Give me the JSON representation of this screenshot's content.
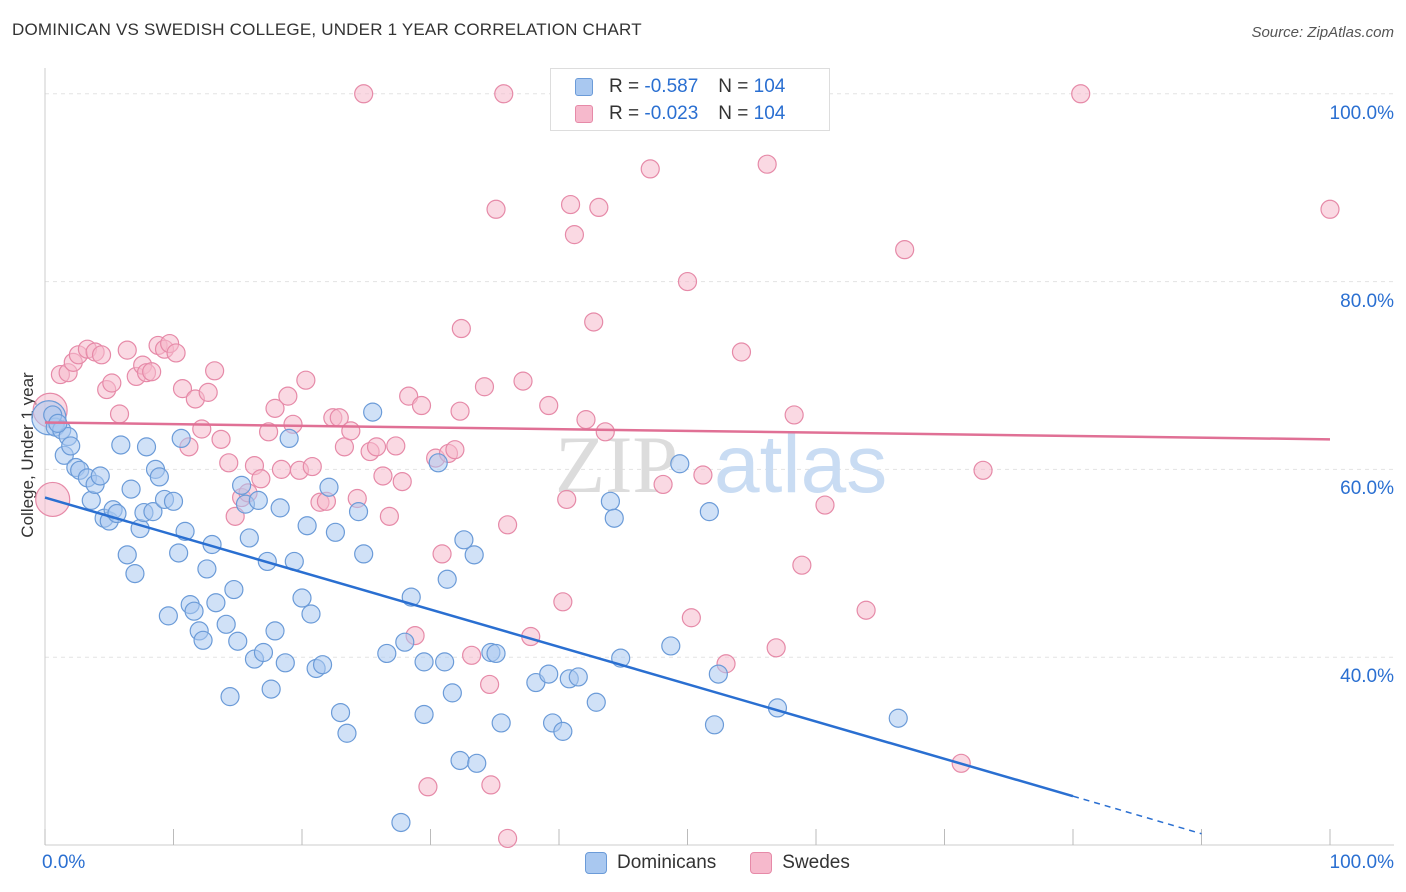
{
  "title": "DOMINICAN VS SWEDISH COLLEGE, UNDER 1 YEAR CORRELATION CHART",
  "source": "Source: ZipAtlas.com",
  "watermark": {
    "zip": "ZIP",
    "atlas": "atlas"
  },
  "colors": {
    "blue_fill": "#a9c8f0",
    "blue_stroke": "#6b9bd8",
    "blue_line": "#2a6fd1",
    "pink_fill": "#f6b9cc",
    "pink_stroke": "#e68aa8",
    "pink_line": "#e07095",
    "axis_text": "#2a6fd1",
    "grid": "#e3e3e3"
  },
  "legend": {
    "rows": [
      {
        "r_label": "R =",
        "r_value": "-0.587",
        "n_label": "N =",
        "n_value": "104"
      },
      {
        "r_label": "R =",
        "r_value": "-0.023",
        "n_label": "N =",
        "n_value": "104"
      }
    ]
  },
  "chart_data": {
    "type": "scatter",
    "title": "DOMINICAN VS SWEDISH COLLEGE, UNDER 1 YEAR CORRELATION CHART",
    "xlabel": "",
    "ylabel": "College, Under 1 year",
    "xlim": [
      0,
      100
    ],
    "ylim": [
      20,
      102
    ],
    "x_tick_labels": [
      "0.0%",
      "100.0%"
    ],
    "y_tick_labels": [
      "40.0%",
      "60.0%",
      "80.0%",
      "100.0%"
    ],
    "y_ticks": [
      40,
      60,
      80,
      100
    ],
    "grid": true,
    "legend_position": "top-center",
    "series": [
      {
        "name": "Dominicans",
        "color": "#a9c8f0",
        "trend": {
          "x0": 0,
          "y0": 57.0,
          "x1": 80,
          "y1": 25.2,
          "dashed_to_x": 90,
          "dashed_to_y": 21.2
        },
        "points": [
          [
            0.3,
            65.5
          ],
          [
            0.8,
            64.5
          ],
          [
            1.3,
            64.2
          ],
          [
            1.5,
            61.5
          ],
          [
            1.8,
            63.5
          ],
          [
            2.0,
            62.5
          ],
          [
            2.4,
            60.2
          ],
          [
            2.7,
            59.9
          ],
          [
            3.3,
            59.1
          ],
          [
            3.6,
            56.7
          ],
          [
            3.9,
            58.4
          ],
          [
            4.3,
            59.3
          ],
          [
            4.6,
            54.8
          ],
          [
            5.0,
            54.5
          ],
          [
            5.3,
            55.7
          ],
          [
            5.6,
            55.3
          ],
          [
            5.9,
            62.6
          ],
          [
            6.4,
            50.9
          ],
          [
            6.7,
            57.9
          ],
          [
            7.0,
            48.9
          ],
          [
            7.4,
            53.7
          ],
          [
            7.7,
            55.4
          ],
          [
            7.9,
            62.4
          ],
          [
            8.4,
            55.5
          ],
          [
            8.6,
            60.0
          ],
          [
            8.9,
            59.2
          ],
          [
            9.3,
            56.8
          ],
          [
            9.6,
            44.4
          ],
          [
            10.0,
            56.6
          ],
          [
            10.4,
            51.1
          ],
          [
            10.6,
            63.3
          ],
          [
            10.9,
            53.4
          ],
          [
            11.3,
            45.6
          ],
          [
            11.6,
            44.9
          ],
          [
            12.0,
            42.8
          ],
          [
            12.3,
            41.8
          ],
          [
            12.6,
            49.4
          ],
          [
            13.0,
            52.0
          ],
          [
            13.3,
            45.8
          ],
          [
            14.1,
            43.5
          ],
          [
            14.4,
            35.8
          ],
          [
            14.7,
            47.2
          ],
          [
            15.0,
            41.7
          ],
          [
            15.3,
            58.3
          ],
          [
            15.6,
            56.3
          ],
          [
            15.9,
            52.7
          ],
          [
            16.3,
            39.8
          ],
          [
            16.6,
            56.7
          ],
          [
            17.0,
            40.5
          ],
          [
            17.3,
            50.2
          ],
          [
            17.6,
            36.6
          ],
          [
            17.9,
            42.8
          ],
          [
            18.3,
            55.9
          ],
          [
            18.7,
            39.4
          ],
          [
            19.0,
            63.3
          ],
          [
            19.4,
            50.2
          ],
          [
            20.0,
            46.3
          ],
          [
            20.4,
            54.0
          ],
          [
            20.7,
            44.6
          ],
          [
            21.1,
            38.8
          ],
          [
            21.6,
            39.2
          ],
          [
            22.1,
            58.1
          ],
          [
            22.6,
            53.3
          ],
          [
            23.0,
            34.1
          ],
          [
            23.5,
            31.9
          ],
          [
            24.4,
            55.5
          ],
          [
            24.8,
            51.0
          ],
          [
            25.5,
            66.1
          ],
          [
            26.6,
            40.4
          ],
          [
            27.7,
            22.4
          ],
          [
            28.0,
            41.6
          ],
          [
            28.5,
            46.4
          ],
          [
            29.5,
            39.5
          ],
          [
            29.5,
            33.9
          ],
          [
            30.6,
            60.7
          ],
          [
            31.1,
            39.5
          ],
          [
            31.3,
            48.3
          ],
          [
            31.7,
            36.2
          ],
          [
            32.3,
            29.0
          ],
          [
            32.6,
            52.5
          ],
          [
            33.4,
            50.9
          ],
          [
            33.6,
            28.7
          ],
          [
            34.7,
            40.5
          ],
          [
            35.1,
            40.4
          ],
          [
            35.5,
            33.0
          ],
          [
            38.2,
            37.3
          ],
          [
            39.2,
            38.2
          ],
          [
            39.5,
            33.0
          ],
          [
            40.3,
            32.1
          ],
          [
            40.8,
            37.7
          ],
          [
            41.5,
            37.9
          ],
          [
            42.9,
            35.2
          ],
          [
            44.0,
            56.6
          ],
          [
            44.3,
            54.8
          ],
          [
            44.8,
            39.9
          ],
          [
            48.7,
            41.2
          ],
          [
            49.4,
            60.6
          ],
          [
            51.7,
            55.5
          ],
          [
            52.1,
            32.8
          ],
          [
            52.4,
            38.2
          ],
          [
            57.0,
            34.6
          ],
          [
            66.4,
            33.5
          ],
          [
            0.6,
            65.8
          ],
          [
            1.0,
            64.9
          ]
        ]
      },
      {
        "name": "Swedes",
        "color": "#f6b9cc",
        "trend": {
          "x0": 0,
          "y0": 65.0,
          "x1": 100,
          "y1": 63.2
        },
        "points": [
          [
            0.4,
            66.3
          ],
          [
            0.6,
            56.8
          ],
          [
            1.2,
            70.1
          ],
          [
            1.8,
            70.3
          ],
          [
            2.2,
            71.4
          ],
          [
            2.6,
            72.2
          ],
          [
            3.3,
            72.8
          ],
          [
            3.9,
            72.5
          ],
          [
            4.4,
            72.2
          ],
          [
            4.8,
            68.5
          ],
          [
            5.2,
            69.2
          ],
          [
            5.8,
            65.9
          ],
          [
            6.4,
            72.7
          ],
          [
            7.1,
            69.9
          ],
          [
            7.6,
            71.1
          ],
          [
            7.9,
            70.3
          ],
          [
            8.3,
            70.4
          ],
          [
            8.8,
            73.2
          ],
          [
            9.3,
            72.8
          ],
          [
            9.7,
            73.4
          ],
          [
            10.2,
            72.4
          ],
          [
            10.7,
            68.6
          ],
          [
            11.2,
            62.4
          ],
          [
            11.7,
            67.5
          ],
          [
            12.2,
            64.3
          ],
          [
            12.7,
            68.2
          ],
          [
            13.2,
            70.5
          ],
          [
            13.7,
            63.2
          ],
          [
            14.3,
            60.7
          ],
          [
            14.8,
            55.0
          ],
          [
            15.3,
            57.0
          ],
          [
            15.8,
            57.5
          ],
          [
            16.3,
            60.4
          ],
          [
            16.8,
            59.0
          ],
          [
            17.4,
            64.0
          ],
          [
            17.9,
            66.5
          ],
          [
            18.4,
            60.0
          ],
          [
            18.9,
            67.8
          ],
          [
            19.3,
            64.8
          ],
          [
            19.8,
            59.9
          ],
          [
            20.3,
            69.5
          ],
          [
            20.8,
            60.3
          ],
          [
            21.4,
            56.5
          ],
          [
            21.9,
            56.6
          ],
          [
            22.4,
            65.5
          ],
          [
            22.9,
            65.5
          ],
          [
            23.3,
            62.4
          ],
          [
            23.8,
            64.1
          ],
          [
            24.3,
            56.9
          ],
          [
            24.8,
            100.0
          ],
          [
            25.3,
            61.9
          ],
          [
            25.8,
            62.4
          ],
          [
            26.3,
            59.3
          ],
          [
            26.8,
            55.0
          ],
          [
            27.3,
            62.5
          ],
          [
            27.8,
            58.7
          ],
          [
            28.3,
            67.8
          ],
          [
            28.8,
            42.3
          ],
          [
            29.3,
            66.8
          ],
          [
            29.8,
            26.2
          ],
          [
            30.4,
            61.2
          ],
          [
            30.9,
            51.0
          ],
          [
            31.4,
            61.7
          ],
          [
            31.9,
            62.1
          ],
          [
            32.3,
            66.2
          ],
          [
            32.4,
            75.0
          ],
          [
            33.2,
            40.2
          ],
          [
            34.2,
            68.8
          ],
          [
            34.6,
            37.1
          ],
          [
            34.7,
            26.4
          ],
          [
            35.1,
            87.7
          ],
          [
            35.7,
            100.0
          ],
          [
            36.0,
            54.1
          ],
          [
            36.0,
            20.7
          ],
          [
            37.2,
            69.4
          ],
          [
            37.8,
            42.2
          ],
          [
            39.2,
            66.8
          ],
          [
            40.3,
            45.9
          ],
          [
            40.6,
            56.8
          ],
          [
            40.9,
            88.2
          ],
          [
            41.2,
            85.0
          ],
          [
            42.1,
            65.3
          ],
          [
            42.7,
            75.7
          ],
          [
            43.1,
            87.9
          ],
          [
            43.6,
            64.0
          ],
          [
            46.1,
            100.0
          ],
          [
            47.1,
            92.0
          ],
          [
            48.1,
            58.4
          ],
          [
            50.0,
            80.0
          ],
          [
            50.3,
            44.2
          ],
          [
            51.2,
            59.4
          ],
          [
            53.0,
            39.3
          ],
          [
            54.2,
            72.5
          ],
          [
            56.2,
            92.5
          ],
          [
            56.9,
            41.0
          ],
          [
            58.3,
            65.8
          ],
          [
            58.9,
            49.8
          ],
          [
            60.7,
            56.2
          ],
          [
            63.9,
            45.0
          ],
          [
            66.9,
            83.4
          ],
          [
            71.3,
            28.7
          ],
          [
            73.0,
            59.9
          ],
          [
            80.6,
            100.0
          ],
          [
            100.0,
            87.7
          ]
        ]
      }
    ]
  },
  "bottom_legend": {
    "items": [
      "Dominicans",
      "Swedes"
    ]
  }
}
